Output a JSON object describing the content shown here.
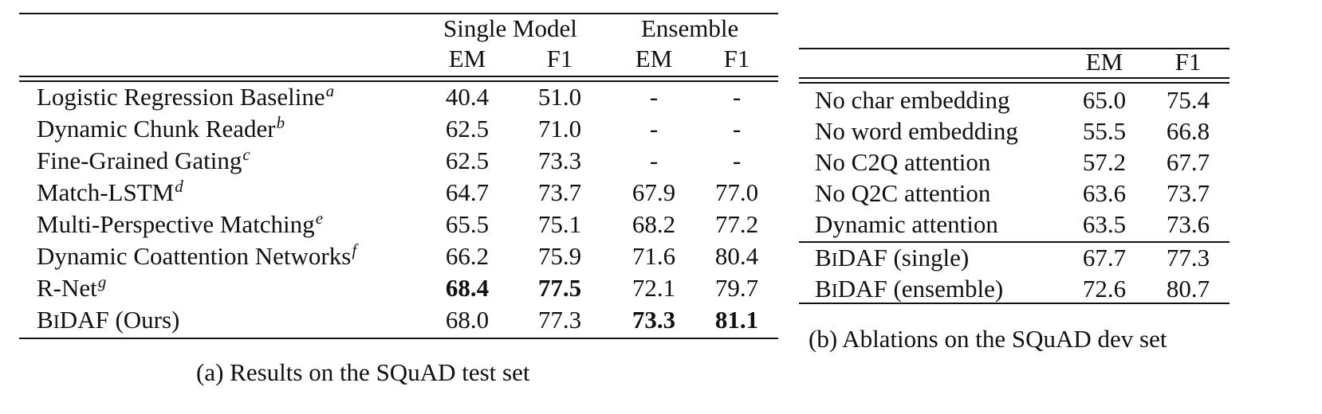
{
  "table_a": {
    "group_headers": [
      "Single Model",
      "Ensemble"
    ],
    "column_headers": [
      "EM",
      "F1",
      "EM",
      "F1"
    ],
    "rows": [
      {
        "name": "Logistic Regression Baseline",
        "sup": "a",
        "values": [
          "40.4",
          "51.0",
          "-",
          "-"
        ],
        "bold": [
          false,
          false,
          false,
          false
        ]
      },
      {
        "name": "Dynamic Chunk Reader",
        "sup": "b",
        "values": [
          "62.5",
          "71.0",
          "-",
          "-"
        ],
        "bold": [
          false,
          false,
          false,
          false
        ]
      },
      {
        "name": "Fine-Grained Gating",
        "sup": "c",
        "values": [
          "62.5",
          "73.3",
          "-",
          "-"
        ],
        "bold": [
          false,
          false,
          false,
          false
        ]
      },
      {
        "name": "Match-LSTM",
        "sup": "d",
        "values": [
          "64.7",
          "73.7",
          "67.9",
          "77.0"
        ],
        "bold": [
          false,
          false,
          false,
          false
        ]
      },
      {
        "name": "Multi-Perspective Matching",
        "sup": "e",
        "values": [
          "65.5",
          "75.1",
          "68.2",
          "77.2"
        ],
        "bold": [
          false,
          false,
          false,
          false
        ]
      },
      {
        "name": "Dynamic Coattention Networks",
        "sup": "f",
        "values": [
          "66.2",
          "75.9",
          "71.6",
          "80.4"
        ],
        "bold": [
          false,
          false,
          false,
          false
        ]
      },
      {
        "name": "R-Net",
        "sup": "g",
        "values": [
          "68.4",
          "77.5",
          "72.1",
          "79.7"
        ],
        "bold": [
          true,
          true,
          false,
          false
        ]
      },
      {
        "name": "BiDAF (Ours)",
        "sup": "",
        "values": [
          "68.0",
          "77.3",
          "73.3",
          "81.1"
        ],
        "bold": [
          false,
          false,
          true,
          true
        ]
      }
    ],
    "caption": "(a) Results on the SQuAD test set"
  },
  "table_b": {
    "column_headers": [
      "EM",
      "F1"
    ],
    "rows": [
      {
        "name": "No char embedding",
        "values": [
          "65.0",
          "75.4"
        ]
      },
      {
        "name": "No word embedding",
        "values": [
          "55.5",
          "66.8"
        ]
      },
      {
        "name": "No C2Q attention",
        "values": [
          "57.2",
          "67.7"
        ]
      },
      {
        "name": "No Q2C attention",
        "values": [
          "63.6",
          "73.7"
        ]
      },
      {
        "name": "Dynamic attention",
        "values": [
          "63.5",
          "73.6"
        ]
      },
      {
        "name": "BiDAF (single)",
        "values": [
          "67.7",
          "77.3"
        ]
      },
      {
        "name": "BiDAF (ensemble)",
        "values": [
          "72.6",
          "80.7"
        ]
      }
    ],
    "caption": "(b) Ablations on the SQuAD dev set"
  }
}
